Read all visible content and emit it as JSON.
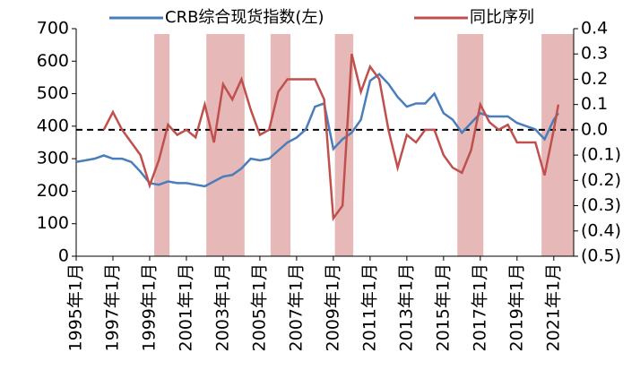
{
  "chart_data": {
    "type": "line",
    "x": [
      "1995-01",
      "1995-07",
      "1996-01",
      "1996-07",
      "1997-01",
      "1997-07",
      "1998-01",
      "1998-07",
      "1999-01",
      "1999-07",
      "2000-01",
      "2000-07",
      "2001-01",
      "2001-07",
      "2002-01",
      "2002-07",
      "2003-01",
      "2003-07",
      "2004-01",
      "2004-07",
      "2005-01",
      "2005-07",
      "2006-01",
      "2006-07",
      "2007-01",
      "2007-07",
      "2008-01",
      "2008-07",
      "2009-01",
      "2009-07",
      "2010-01",
      "2010-07",
      "2011-01",
      "2011-07",
      "2012-01",
      "2012-07",
      "2013-01",
      "2013-07",
      "2014-01",
      "2014-07",
      "2015-01",
      "2015-07",
      "2016-01",
      "2016-07",
      "2017-01",
      "2017-07",
      "2018-01",
      "2018-07",
      "2019-01",
      "2019-07",
      "2020-01",
      "2020-07",
      "2021-01",
      "2021-04"
    ],
    "series": [
      {
        "name": "CRB综合现货指数(左)",
        "color": "#4a7ebb",
        "values": [
          290,
          295,
          300,
          310,
          300,
          300,
          290,
          260,
          225,
          220,
          230,
          225,
          225,
          220,
          215,
          230,
          245,
          250,
          270,
          300,
          295,
          300,
          325,
          350,
          365,
          390,
          460,
          470,
          330,
          360,
          380,
          420,
          540,
          560,
          530,
          490,
          460,
          470,
          470,
          500,
          440,
          420,
          380,
          410,
          440,
          430,
          430,
          430,
          410,
          400,
          390,
          360,
          420,
          440
        ]
      },
      {
        "name": "同比序列",
        "color": "#c0504d",
        "axis": "y2",
        "values": [
          null,
          null,
          null,
          0.0,
          0.07,
          0.0,
          -0.05,
          -0.1,
          -0.22,
          -0.12,
          0.02,
          -0.02,
          0.0,
          -0.03,
          0.1,
          -0.05,
          0.18,
          0.12,
          0.2,
          0.08,
          -0.02,
          0.0,
          0.15,
          0.2,
          0.2,
          0.2,
          0.2,
          0.12,
          -0.35,
          -0.3,
          0.3,
          0.15,
          0.25,
          0.2,
          0.0,
          -0.15,
          -0.02,
          -0.05,
          0.0,
          0.0,
          -0.1,
          -0.15,
          -0.17,
          -0.08,
          0.1,
          0.03,
          0.0,
          0.02,
          -0.05,
          -0.05,
          -0.05,
          -0.18,
          0.0,
          0.1
        ]
      }
    ],
    "xlim": [
      "1995-01",
      "2022-02"
    ],
    "xticks": [
      {
        "value": "1995-01",
        "label": "1995年1月"
      },
      {
        "value": "1997-01",
        "label": "1997年1月"
      },
      {
        "value": "1999-01",
        "label": "1999年1月"
      },
      {
        "value": "2001-01",
        "label": "2001年1月"
      },
      {
        "value": "2003-01",
        "label": "2003年1月"
      },
      {
        "value": "2005-01",
        "label": "2005年1月"
      },
      {
        "value": "2007-01",
        "label": "2007年1月"
      },
      {
        "value": "2009-01",
        "label": "2009年1月"
      },
      {
        "value": "2011-01",
        "label": "2011年1月"
      },
      {
        "value": "2013-01",
        "label": "2013年1月"
      },
      {
        "value": "2015-01",
        "label": "2015年1月"
      },
      {
        "value": "2017-01",
        "label": "2017年1月"
      },
      {
        "value": "2019-01",
        "label": "2019年1月"
      },
      {
        "value": "2021-01",
        "label": "2021年1月"
      }
    ],
    "ylim": [
      0,
      700
    ],
    "yticks": [
      0,
      100,
      200,
      300,
      400,
      500,
      600,
      700
    ],
    "y2lim": [
      -0.5,
      0.4
    ],
    "y2ticks": [
      {
        "value": -0.5,
        "label": "(0.5)"
      },
      {
        "value": -0.4,
        "label": "(0.4)"
      },
      {
        "value": -0.3,
        "label": "(0.3)"
      },
      {
        "value": -0.2,
        "label": "(0.2)"
      },
      {
        "value": -0.1,
        "label": "(0.1)"
      },
      {
        "value": 0,
        "label": "0.0"
      },
      0.1,
      0.2,
      0.3,
      0.4
    ],
    "shaded": [
      [
        "1999-04",
        "2000-02"
      ],
      [
        "2002-02",
        "2004-03"
      ],
      [
        "2005-08",
        "2006-09"
      ],
      [
        "2009-02",
        "2010-02"
      ],
      [
        "2015-10",
        "2017-03"
      ],
      [
        "2020-05",
        "2022-02"
      ]
    ],
    "shade_color": "#e6b9b8",
    "reference_line": {
      "value": 0,
      "axis": "y2"
    }
  }
}
